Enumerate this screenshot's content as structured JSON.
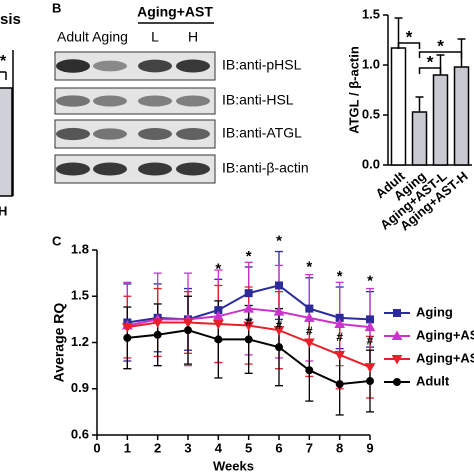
{
  "left_panel_fragment": {
    "title": "sis",
    "label": "H",
    "star": "*"
  },
  "blot_panel": {
    "label": "B",
    "group": "Aging+AST",
    "lanes": [
      "Adult",
      "Aging",
      "L",
      "H"
    ],
    "rows": [
      "IB:anti-pHSL",
      "IB:anti-HSL",
      "IB:anti-ATGL",
      "IB:anti-β-actin"
    ]
  },
  "chart_data": [
    {
      "type": "bar",
      "ylabel": "ATGL / β-actin",
      "categories": [
        "Adult",
        "Aging",
        "Aging+AST-L",
        "Aging+AST-H"
      ],
      "values": [
        1.17,
        0.53,
        0.9,
        0.98
      ],
      "errors": [
        0.3,
        0.15,
        0.2,
        0.28
      ],
      "colors": [
        "#ffffff",
        "#c9c9d2",
        "#c9c9d2",
        "#c9c9d2"
      ],
      "ylim": [
        0,
        1.5
      ],
      "yticks": [
        {
          "value": 0,
          "label": "0.0"
        },
        0.5,
        {
          "value": 1,
          "label": "1.0"
        },
        1.5
      ],
      "annotations": [
        "*",
        "*",
        "*"
      ]
    },
    {
      "type": "line",
      "panel_label": "C",
      "xlabel": "Weeks",
      "ylabel": "Average RQ",
      "x": [
        1,
        2,
        3,
        4,
        5,
        6,
        7,
        8,
        9
      ],
      "xlim": [
        0,
        9
      ],
      "xticks": [
        0,
        1,
        2,
        3,
        4,
        5,
        6,
        7,
        8,
        9
      ],
      "ylim": [
        0.6,
        1.8
      ],
      "yticks": [
        0.6,
        0.9,
        1.2,
        1.5,
        1.8
      ],
      "series": [
        {
          "name": "Aging",
          "color": "#2b2b9b",
          "marker": "square",
          "values": [
            1.33,
            1.36,
            1.35,
            1.41,
            1.52,
            1.57,
            1.42,
            1.36,
            1.35
          ],
          "errors": [
            0.25,
            0.22,
            0.2,
            0.2,
            0.17,
            0.22,
            0.2,
            0.2,
            0.18
          ]
        },
        {
          "name": "Aging+AS",
          "color": "#cc33cc",
          "marker": "triangle-up",
          "values": [
            1.31,
            1.35,
            1.35,
            1.37,
            1.42,
            1.4,
            1.36,
            1.32,
            1.3
          ],
          "errors": [
            0.28,
            0.3,
            0.3,
            0.3,
            0.3,
            0.3,
            0.28,
            0.27,
            0.25
          ]
        },
        {
          "name": "Aging+AS",
          "color": "#e8202a",
          "marker": "triangle-down",
          "values": [
            1.3,
            1.33,
            1.33,
            1.32,
            1.31,
            1.28,
            1.2,
            1.12,
            1.04
          ],
          "errors": [
            0.2,
            0.22,
            0.2,
            0.25,
            0.25,
            0.25,
            0.22,
            0.22,
            0.2
          ]
        },
        {
          "name": "Adult",
          "color": "#000000",
          "marker": "circle",
          "values": [
            1.23,
            1.25,
            1.28,
            1.22,
            1.22,
            1.17,
            1.02,
            0.93,
            0.95
          ],
          "errors": [
            0.2,
            0.2,
            0.22,
            0.25,
            0.22,
            0.25,
            0.2,
            0.2,
            0.2
          ]
        }
      ],
      "annotations": [
        {
          "x": 4,
          "label": "*"
        },
        {
          "x": 5,
          "label": "*"
        },
        {
          "x": 6,
          "label": "*"
        },
        {
          "x": 7,
          "label": "*"
        },
        {
          "x": 8,
          "label": "*"
        },
        {
          "x": 9,
          "label": "*"
        },
        {
          "x": 5,
          "label": "#"
        },
        {
          "x": 6,
          "label": "#"
        },
        {
          "x": 7,
          "label": "#"
        },
        {
          "x": 8,
          "label": "#"
        },
        {
          "x": 9,
          "label": "#"
        }
      ]
    }
  ]
}
